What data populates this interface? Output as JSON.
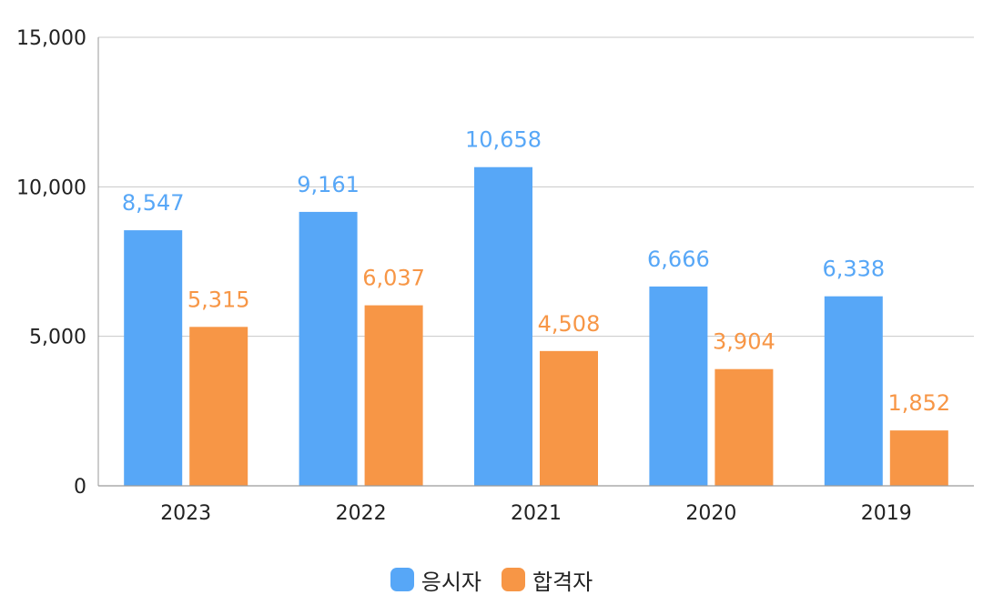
{
  "chart_data": {
    "type": "bar",
    "categories": [
      "2023",
      "2022",
      "2021",
      "2020",
      "2019"
    ],
    "series": [
      {
        "name": "응시자",
        "values": [
          8547,
          9161,
          10658,
          6666,
          6338
        ],
        "labels": [
          "8,547",
          "9,161",
          "10,658",
          "6,666",
          "6,338"
        ],
        "color": "#57a7f7"
      },
      {
        "name": "합격자",
        "values": [
          5315,
          6037,
          4508,
          3904,
          1852
        ],
        "labels": [
          "5,315",
          "6,037",
          "4,508",
          "3,904",
          "1,852"
        ],
        "color": "#f79646"
      }
    ],
    "yticks": [
      "0",
      "5,000",
      "10,000",
      "15,000"
    ],
    "ytick_values": [
      0,
      5000,
      10000,
      15000
    ],
    "ylim": [
      0,
      15000
    ],
    "grid": true,
    "legend_position": "bottom"
  }
}
